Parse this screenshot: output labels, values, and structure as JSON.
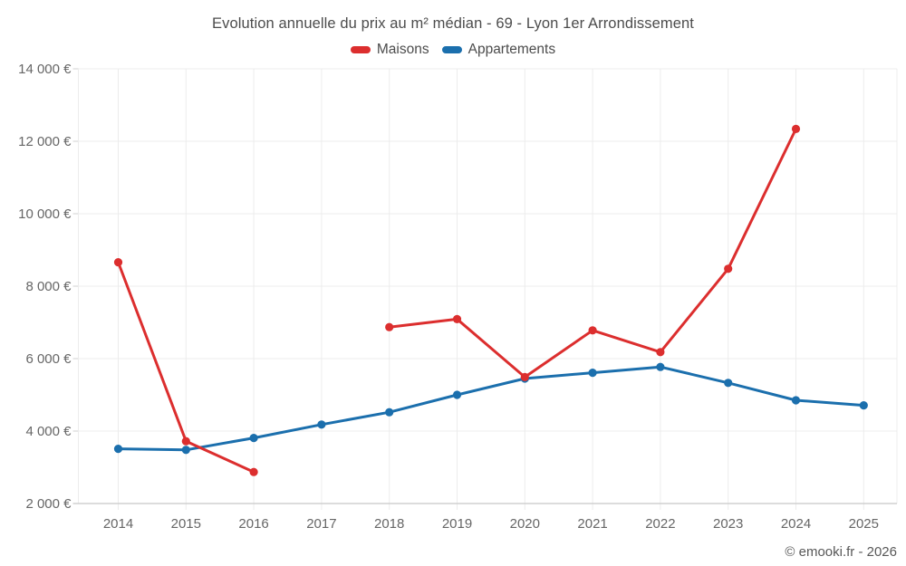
{
  "header": {
    "title": "Evolution annuelle du prix au m² médian - 69 - Lyon 1er Arrondissement"
  },
  "footer": {
    "copyright": "© emooki.fr - 2026"
  },
  "chart_data": {
    "type": "line",
    "title": "Evolution annuelle du prix au m² médian - 69 - Lyon 1er Arrondissement",
    "categories": [
      "2014",
      "2015",
      "2016",
      "2017",
      "2018",
      "2019",
      "2020",
      "2021",
      "2022",
      "2023",
      "2024",
      "2025"
    ],
    "series": [
      {
        "name": "Maisons",
        "color": "#dc2e2e",
        "values": [
          8660,
          3720,
          2870,
          null,
          6870,
          7090,
          5490,
          6780,
          6180,
          8480,
          12340,
          null
        ]
      },
      {
        "name": "Appartements",
        "color": "#1b6fad",
        "values": [
          3510,
          3480,
          3810,
          4180,
          4520,
          5000,
          5450,
          5610,
          5770,
          5330,
          4850,
          4710
        ]
      }
    ],
    "xlabel": "",
    "ylabel": "",
    "ylim": [
      2000,
      14000
    ],
    "yticks": [
      {
        "value": 2000,
        "label": "2 000 €"
      },
      {
        "value": 4000,
        "label": "4 000 €"
      },
      {
        "value": 6000,
        "label": "6 000 €"
      },
      {
        "value": 8000,
        "label": "8 000 €"
      },
      {
        "value": 10000,
        "label": "10 000 €"
      },
      {
        "value": 12000,
        "label": "12 000 €"
      },
      {
        "value": 14000,
        "label": "14 000 €"
      }
    ],
    "grid": true,
    "legend_position": "top",
    "colors": {
      "gridline": "#ececec",
      "axis_line": "#c8c8c8",
      "tick_mark": "#d2d2d2",
      "tick_text": "#666666"
    }
  }
}
